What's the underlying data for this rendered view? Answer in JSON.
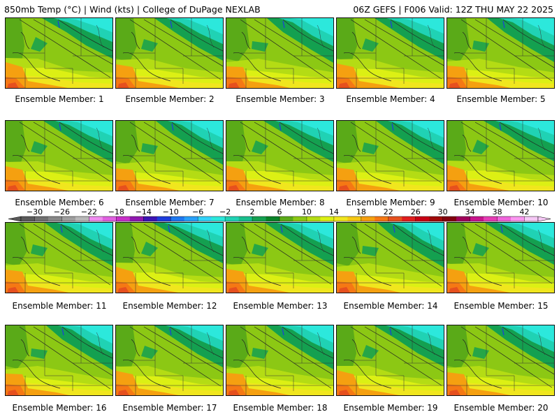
{
  "header": {
    "left": "850mb Temp (°C) | Wind (kts) | College of DuPage NEXLAB",
    "right": "06Z GEFS | F006 Valid: 12Z THU MAY 22 2025"
  },
  "panels": [
    {
      "label": "Ensemble Member: 1"
    },
    {
      "label": "Ensemble Member: 2"
    },
    {
      "label": "Ensemble Member: 3"
    },
    {
      "label": "Ensemble Member: 4"
    },
    {
      "label": "Ensemble Member: 5"
    },
    {
      "label": "Ensemble Member: 6"
    },
    {
      "label": "Ensemble Member: 7"
    },
    {
      "label": "Ensemble Member: 8"
    },
    {
      "label": "Ensemble Member: 9"
    },
    {
      "label": "Ensemble Member: 10"
    },
    {
      "label": "Ensemble Member: 11"
    },
    {
      "label": "Ensemble Member: 12"
    },
    {
      "label": "Ensemble Member: 13"
    },
    {
      "label": "Ensemble Member: 14"
    },
    {
      "label": "Ensemble Member: 15"
    },
    {
      "label": "Ensemble Member: 16"
    },
    {
      "label": "Ensemble Member: 17"
    },
    {
      "label": "Ensemble Member: 18"
    },
    {
      "label": "Ensemble Member: 19"
    },
    {
      "label": "Ensemble Member: 20"
    }
  ],
  "colorbar": {
    "ticks": [
      "-30",
      "-26",
      "-22",
      "-18",
      "-14",
      "-10",
      "-6",
      "-2",
      "2",
      "6",
      "10",
      "14",
      "18",
      "22",
      "26",
      "30",
      "34",
      "38",
      "42"
    ],
    "colors": [
      "#5a5a5a",
      "#707070",
      "#878787",
      "#9e9e9e",
      "#b8b8b8",
      "#f08cf0",
      "#e060e0",
      "#c830c8",
      "#9018b0",
      "#3c14b4",
      "#1e3cdc",
      "#1e78f0",
      "#28a0f8",
      "#32d2f8",
      "#2ce8dc",
      "#20d2b4",
      "#18be8c",
      "#14a050",
      "#0a8228",
      "#5aaa18",
      "#8cc814",
      "#b4dc14",
      "#dcf014",
      "#f0e61e",
      "#f5c814",
      "#f5a010",
      "#f57814",
      "#e6501e",
      "#e11e1e",
      "#c80014",
      "#a00a0a",
      "#82000f",
      "#a0005a",
      "#c8148c",
      "#e63cb4",
      "#f064dc",
      "#fa96f0",
      "#f5c8f5"
    ]
  },
  "map_colors": {
    "light_green": "#8cc814",
    "mid_green": "#5aaa18",
    "dark_green": "#14a050",
    "teal": "#20d2b4",
    "cyan": "#2ce8dc",
    "yellow_green": "#b4dc14",
    "yellow": "#dcf014",
    "gold": "#f0e61e",
    "orange": "#f5a010",
    "dark_orange": "#f57814",
    "red_orange": "#e6501e"
  }
}
